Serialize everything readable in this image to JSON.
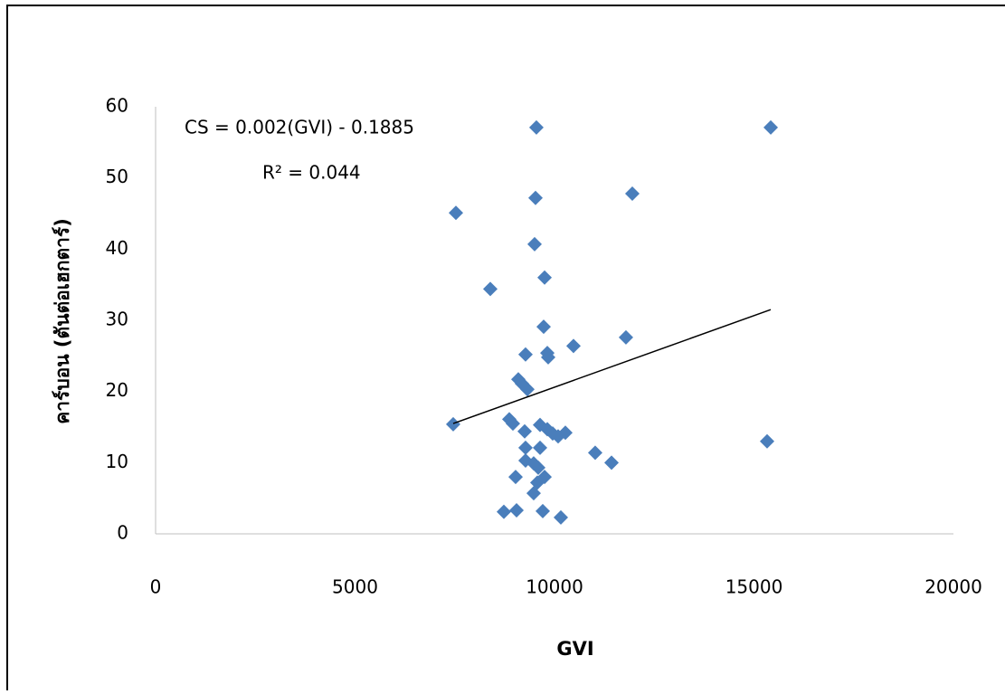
{
  "chart_data": {
    "type": "scatter",
    "x_label": "GVI",
    "y_label": "คาร์บอน (ตันต่อเฮกตาร์)",
    "equation": "CS = 0.002(GVI) - 0.1885",
    "r_squared": "R² = 0.044",
    "color": "#4a7ebb",
    "trendline": {
      "x": [
        7460,
        15420
      ],
      "y": [
        15.5,
        31.5
      ],
      "color": "#000000"
    },
    "x": [
      9546,
      15420,
      11950,
      9524,
      7528,
      9501,
      9751,
      8390,
      9728,
      11791,
      10476,
      9819,
      9841,
      9274,
      9093,
      9184,
      9320,
      7460,
      8866,
      8957,
      9637,
      9819,
      9252,
      9955,
      10272,
      10091,
      9637,
      9274,
      11020,
      15329,
      11429,
      9274,
      9478,
      9592,
      9751,
      9025,
      9569,
      9478,
      8730,
      9048,
      9705,
      10159
    ],
    "values": [
      57.1,
      57.1,
      47.8,
      47.2,
      45.1,
      40.7,
      36.0,
      34.4,
      29.1,
      27.6,
      26.4,
      25.4,
      24.8,
      25.2,
      21.7,
      21.1,
      20.3,
      15.4,
      16.1,
      15.5,
      15.3,
      14.7,
      14.4,
      14.1,
      14.2,
      13.7,
      12.1,
      12.1,
      11.4,
      13.0,
      10.0,
      10.3,
      9.9,
      9.3,
      8.0,
      8.0,
      7.2,
      5.7,
      3.1,
      3.3,
      3.2,
      2.3
    ],
    "xlim": [
      0,
      20000
    ],
    "xticks": [
      0,
      5000,
      10000,
      15000,
      20000
    ],
    "ylim": [
      0,
      60
    ],
    "yticks": [
      0,
      10,
      20,
      30,
      40,
      50,
      60
    ],
    "grid": false
  }
}
